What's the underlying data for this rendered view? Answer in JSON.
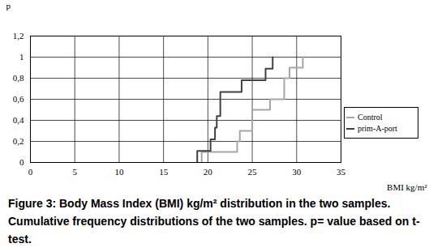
{
  "chart_data": {
    "type": "line",
    "line_style": "step",
    "caption": "Figure 3: Body Mass Index (BMI) kg/m² distribution in the two samples. Cumulative frequency distributions of the two samples. p= value based on t-test.",
    "x_label": "BMI kg/m²",
    "y_label": "p",
    "series": [
      {
        "name": "Control",
        "color": "#a6a6a6",
        "x": [
          19.3,
          19.3,
          23.3,
          23.6,
          25.0,
          27.0,
          28.6,
          29.2,
          30.7
        ],
        "values": [
          0,
          0.1,
          0.2,
          0.3,
          0.5,
          0.6,
          0.8,
          0.9,
          1.0
        ]
      },
      {
        "name": "prim-A-port",
        "color": "#404040",
        "x": [
          18.8,
          18.8,
          20.3,
          20.8,
          21.0,
          21.4,
          23.8,
          26.5,
          27.3
        ],
        "values": [
          0,
          0.11,
          0.22,
          0.33,
          0.44,
          0.67,
          0.78,
          0.89,
          1.0
        ]
      }
    ],
    "xlim": [
      0,
      35
    ],
    "xticks": [
      0,
      5,
      10,
      15,
      20,
      25,
      30,
      35
    ],
    "ylim": [
      0,
      1.2
    ],
    "yticks": [
      0,
      {
        "value": 0.2,
        "label": "0,2"
      },
      {
        "value": 0.4,
        "label": "0,4"
      },
      {
        "value": 0.6,
        "label": "0,6"
      },
      {
        "value": 0.8,
        "label": "0,8"
      },
      1,
      {
        "value": 1.2,
        "label": "1,2"
      }
    ],
    "grid": true,
    "legend": "right"
  }
}
